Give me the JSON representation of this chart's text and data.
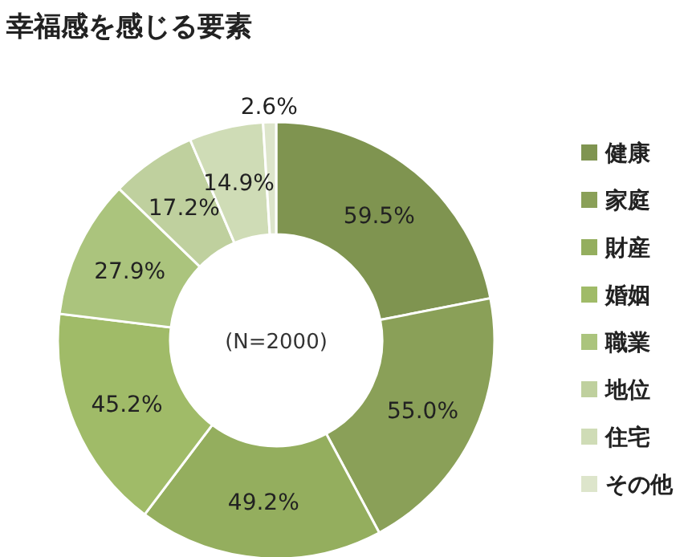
{
  "chart_data": {
    "type": "donut",
    "title": "幸福感を感じる要素",
    "categories": [
      "健康",
      "家庭",
      "財産",
      "婚姻",
      "職業",
      "地位",
      "住宅",
      "その他"
    ],
    "values": [
      59.5,
      55.0,
      49.2,
      45.2,
      27.9,
      17.2,
      14.9,
      2.6
    ],
    "value_labels": [
      "59.5%",
      "55.0%",
      "49.2%",
      "45.2%",
      "27.9%",
      "17.2%",
      "14.9%",
      "2.6%"
    ],
    "colors": [
      "#7f9450",
      "#8aa058",
      "#94ae5e",
      "#a0bb68",
      "#abc47d",
      "#bfd09e",
      "#cfdcb6",
      "#dde5cb"
    ],
    "annotations": [
      "(N=2000)"
    ],
    "legend": "right"
  }
}
